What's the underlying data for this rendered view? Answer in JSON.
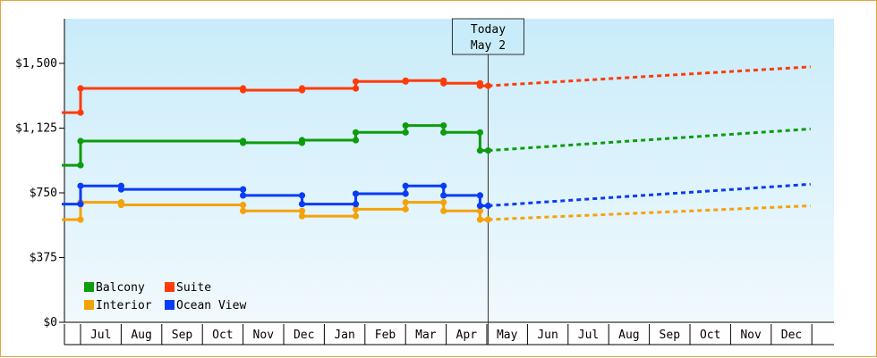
{
  "chart_data": {
    "type": "line",
    "title": "",
    "xlabel": "",
    "ylabel": "",
    "ylim": [
      0,
      1500
    ],
    "y_ticks": [
      {
        "value": 0,
        "label": "$0"
      },
      {
        "value": 375,
        "label": "$375"
      },
      {
        "value": 750,
        "label": "$750"
      },
      {
        "value": 1125,
        "label": "$1,125"
      },
      {
        "value": 1500,
        "label": "$1,500"
      }
    ],
    "x_months": [
      "Jul",
      "Aug",
      "Sep",
      "Oct",
      "Nov",
      "Dec",
      "Jan",
      "Feb",
      "Mar",
      "Apr",
      "May",
      "Jun",
      "Jul",
      "Aug",
      "Sep",
      "Oct",
      "Nov",
      "Dec"
    ],
    "x_axis_start": "2023-06-15",
    "x_axis_end": "2024-12-31",
    "today": {
      "line1": "Today",
      "line2": "May 2",
      "date": "2024-05-02"
    },
    "legend": {
      "position": "bottom-left"
    },
    "series": [
      {
        "name": "Balcony",
        "color": "#0d9c0d",
        "points": [
          [
            "2023-06-15",
            910
          ],
          [
            "2023-07-01",
            910
          ],
          [
            "2023-07-01",
            1050
          ],
          [
            "2023-11-01",
            1050
          ],
          [
            "2023-11-01",
            1040
          ],
          [
            "2023-12-15",
            1040
          ],
          [
            "2023-12-15",
            1055
          ],
          [
            "2024-01-25",
            1055
          ],
          [
            "2024-01-25",
            1100
          ],
          [
            "2024-03-01",
            1100
          ],
          [
            "2024-03-01",
            1140
          ],
          [
            "2024-03-30",
            1140
          ],
          [
            "2024-03-30",
            1100
          ],
          [
            "2024-04-26",
            1100
          ],
          [
            "2024-04-26",
            995
          ],
          [
            "2024-05-02",
            995
          ]
        ],
        "projection": [
          [
            "2024-05-02",
            995
          ],
          [
            "2024-12-31",
            1120
          ]
        ]
      },
      {
        "name": "Suite",
        "color": "#ff3b0a",
        "points": [
          [
            "2023-06-15",
            1215
          ],
          [
            "2023-07-01",
            1215
          ],
          [
            "2023-07-01",
            1355
          ],
          [
            "2023-11-01",
            1355
          ],
          [
            "2023-11-01",
            1345
          ],
          [
            "2023-12-15",
            1345
          ],
          [
            "2023-12-15",
            1355
          ],
          [
            "2024-01-25",
            1355
          ],
          [
            "2024-01-25",
            1395
          ],
          [
            "2024-03-01",
            1395
          ],
          [
            "2024-03-01",
            1400
          ],
          [
            "2024-03-30",
            1400
          ],
          [
            "2024-03-30",
            1385
          ],
          [
            "2024-04-26",
            1385
          ],
          [
            "2024-04-26",
            1370
          ],
          [
            "2024-05-02",
            1370
          ]
        ],
        "projection": [
          [
            "2024-05-02",
            1370
          ],
          [
            "2024-12-31",
            1480
          ]
        ]
      },
      {
        "name": "Interior",
        "color": "#f5a20a",
        "points": [
          [
            "2023-06-15",
            595
          ],
          [
            "2023-07-01",
            595
          ],
          [
            "2023-07-01",
            695
          ],
          [
            "2023-08-01",
            695
          ],
          [
            "2023-08-01",
            680
          ],
          [
            "2023-11-01",
            680
          ],
          [
            "2023-11-01",
            645
          ],
          [
            "2023-12-15",
            645
          ],
          [
            "2023-12-15",
            615
          ],
          [
            "2024-01-25",
            615
          ],
          [
            "2024-01-25",
            655
          ],
          [
            "2024-03-01",
            655
          ],
          [
            "2024-03-01",
            695
          ],
          [
            "2024-03-30",
            695
          ],
          [
            "2024-03-30",
            645
          ],
          [
            "2024-04-26",
            645
          ],
          [
            "2024-04-26",
            595
          ],
          [
            "2024-05-02",
            595
          ]
        ],
        "projection": [
          [
            "2024-05-02",
            595
          ],
          [
            "2024-12-31",
            675
          ]
        ]
      },
      {
        "name": "Ocean View",
        "color": "#0a3cf5",
        "points": [
          [
            "2023-06-15",
            685
          ],
          [
            "2023-07-01",
            685
          ],
          [
            "2023-07-01",
            790
          ],
          [
            "2023-08-01",
            790
          ],
          [
            "2023-08-01",
            770
          ],
          [
            "2023-11-01",
            770
          ],
          [
            "2023-11-01",
            735
          ],
          [
            "2023-12-15",
            735
          ],
          [
            "2023-12-15",
            685
          ],
          [
            "2024-01-25",
            685
          ],
          [
            "2024-01-25",
            745
          ],
          [
            "2024-03-01",
            745
          ],
          [
            "2024-03-01",
            790
          ],
          [
            "2024-03-30",
            790
          ],
          [
            "2024-03-30",
            735
          ],
          [
            "2024-04-26",
            735
          ],
          [
            "2024-04-26",
            675
          ],
          [
            "2024-05-02",
            675
          ]
        ],
        "projection": [
          [
            "2024-05-02",
            675
          ],
          [
            "2024-12-31",
            800
          ]
        ]
      }
    ]
  }
}
